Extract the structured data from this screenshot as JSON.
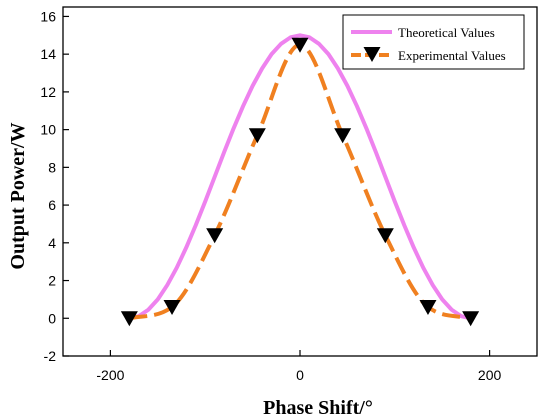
{
  "chart_data": {
    "type": "line",
    "xlabel": "Phase Shift/°",
    "ylabel": "Output Power/W",
    "xlim": [
      -250,
      250
    ],
    "ylim": [
      -2,
      16.5
    ],
    "x_ticks": [
      -200,
      0,
      200
    ],
    "y_ticks": [
      -2,
      0,
      2,
      4,
      6,
      8,
      10,
      12,
      14,
      16
    ],
    "grid": false,
    "legend_position": "top-right",
    "series": [
      {
        "name": "Theoretical Values",
        "style": "solid",
        "color": "#EE82EE",
        "x": [
          -180,
          -170,
          -160,
          -150,
          -140,
          -130,
          -120,
          -110,
          -100,
          -90,
          -80,
          -70,
          -60,
          -50,
          -40,
          -30,
          -20,
          -10,
          0,
          10,
          20,
          30,
          40,
          50,
          60,
          70,
          80,
          90,
          100,
          110,
          120,
          130,
          140,
          150,
          160,
          170,
          180
        ],
        "values": [
          0.0,
          0.11,
          0.45,
          1.0,
          1.76,
          2.68,
          3.75,
          4.93,
          6.19,
          7.5,
          8.81,
          10.07,
          11.25,
          12.32,
          13.24,
          14.0,
          14.55,
          14.89,
          15.0,
          14.89,
          14.55,
          14.0,
          13.24,
          12.32,
          11.25,
          10.07,
          8.81,
          7.5,
          6.19,
          4.93,
          3.75,
          2.68,
          1.76,
          1.0,
          0.45,
          0.11,
          0.0
        ]
      },
      {
        "name": "Experimental Values",
        "style": "dashed",
        "color": "#F08020",
        "marker": "triangle-down",
        "marker_color": "#000000",
        "x": [
          -180,
          -135,
          -90,
          -45,
          0,
          45,
          90,
          135,
          180
        ],
        "values": [
          0.0,
          0.6,
          4.4,
          9.7,
          14.5,
          9.7,
          4.4,
          0.6,
          0.0
        ]
      }
    ]
  }
}
